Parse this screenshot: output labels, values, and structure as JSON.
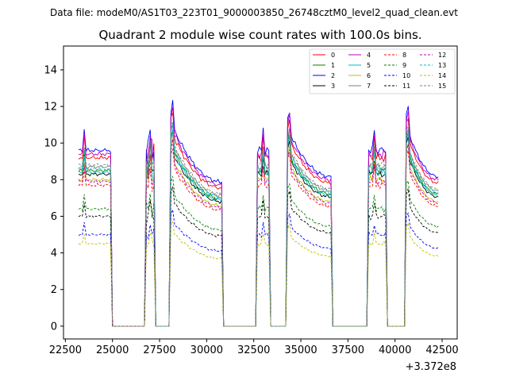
{
  "page": {
    "suptitle": "Data file: modeM0/AS1T03_223T01_9000003850_26748cztM0_level2_quad_clean.evt",
    "title": "Quadrant 2 module wise count rates with 100.0s bins."
  },
  "chart_data": {
    "type": "line",
    "xlabel": "",
    "ylabel": "",
    "x_offset_label": "+3.372e8",
    "xlim": [
      22400,
      43300
    ],
    "ylim": [
      -0.7,
      15.3
    ],
    "xticks": [
      22500,
      25000,
      27500,
      30000,
      32500,
      35000,
      37500,
      40000,
      42500
    ],
    "yticks": [
      0,
      2,
      4,
      6,
      8,
      10,
      12,
      14
    ],
    "legend_position": "top-right",
    "x_start": 23200,
    "x_step": 100,
    "segments": [
      {
        "start": 23200,
        "end": 24900,
        "spike_idx": 3,
        "wiggle": 0.05
      },
      {
        "start": 26800,
        "end": 27200,
        "spike_idx": 2,
        "wiggle": 0.35
      },
      {
        "start": 28100,
        "end": 30800,
        "spike_idx": 1,
        "wiggle": 0.07,
        "decay": [
          1.2,
          0.82,
          0.5
        ]
      },
      {
        "start": 32700,
        "end": 33300,
        "spike_idx": 3,
        "wiggle": 0.12
      },
      {
        "start": 34300,
        "end": 36600,
        "spike_idx": 1,
        "wiggle": 0.06,
        "decay": [
          1.15,
          0.85,
          0.5
        ]
      },
      {
        "start": 38600,
        "end": 39500,
        "spike_idx": 3,
        "wiggle": 0.12
      },
      {
        "start": 40600,
        "end": 42300,
        "spike_idx": 1,
        "wiggle": 0.05,
        "decay": [
          1.18,
          0.85,
          0.5
        ]
      }
    ],
    "series": [
      {
        "name": "0",
        "color": "#ff0000",
        "dash": "solid",
        "level": 9.2
      },
      {
        "name": "1",
        "color": "#008000",
        "dash": "solid",
        "level": 8.5
      },
      {
        "name": "2",
        "color": "#0000ff",
        "dash": "solid",
        "level": 9.6
      },
      {
        "name": "3",
        "color": "#000000",
        "dash": "solid",
        "level": 8.3
      },
      {
        "name": "4",
        "color": "#bf00bf",
        "dash": "solid",
        "level": 9.4
      },
      {
        "name": "5",
        "color": "#00bfbf",
        "dash": "solid",
        "level": 8.4
      },
      {
        "name": "6",
        "color": "#bfbf00",
        "dash": "solid",
        "level": 8.0
      },
      {
        "name": "7",
        "color": "#808080",
        "dash": "solid",
        "level": 8.7
      },
      {
        "name": "8",
        "color": "#ff0000",
        "dash": "dashed",
        "level": 7.7
      },
      {
        "name": "9",
        "color": "#008000",
        "dash": "dashed",
        "level": 6.4
      },
      {
        "name": "10",
        "color": "#0000ff",
        "dash": "dashed",
        "level": 5.0
      },
      {
        "name": "11",
        "color": "#000000",
        "dash": "dashed",
        "level": 6.0
      },
      {
        "name": "12",
        "color": "#bf00bf",
        "dash": "dashed",
        "level": 7.9
      },
      {
        "name": "13",
        "color": "#00bfbf",
        "dash": "dashed",
        "level": 8.6
      },
      {
        "name": "14",
        "color": "#bfbf00",
        "dash": "dashed",
        "level": 4.5
      },
      {
        "name": "15",
        "color": "#808080",
        "dash": "dashed",
        "level": 8.8
      }
    ]
  }
}
